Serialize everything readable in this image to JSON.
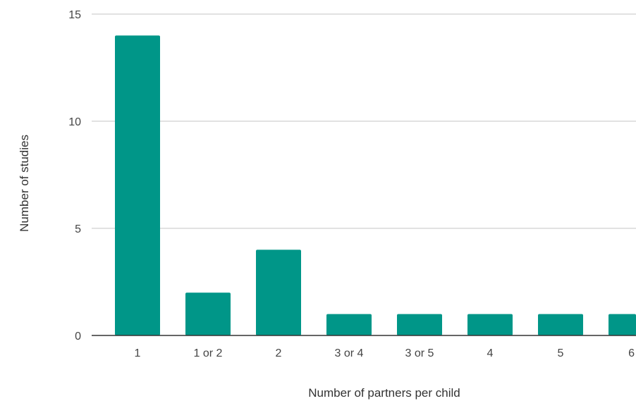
{
  "chart_data": {
    "type": "bar",
    "title": "",
    "xlabel": "Number of partners per child",
    "ylabel": "Number of studies",
    "categories": [
      "1",
      "1 or 2",
      "2",
      "3 or 4",
      "3 or 5",
      "4",
      "5",
      "6"
    ],
    "values": [
      14,
      2,
      4,
      1,
      1,
      1,
      1,
      1
    ],
    "ylim": [
      0,
      15
    ],
    "yticks": [
      0,
      5,
      10,
      15
    ],
    "grid": true,
    "bar_color": "#009688",
    "grid_color": "#d9d9d9",
    "baseline_color": "#333333"
  }
}
